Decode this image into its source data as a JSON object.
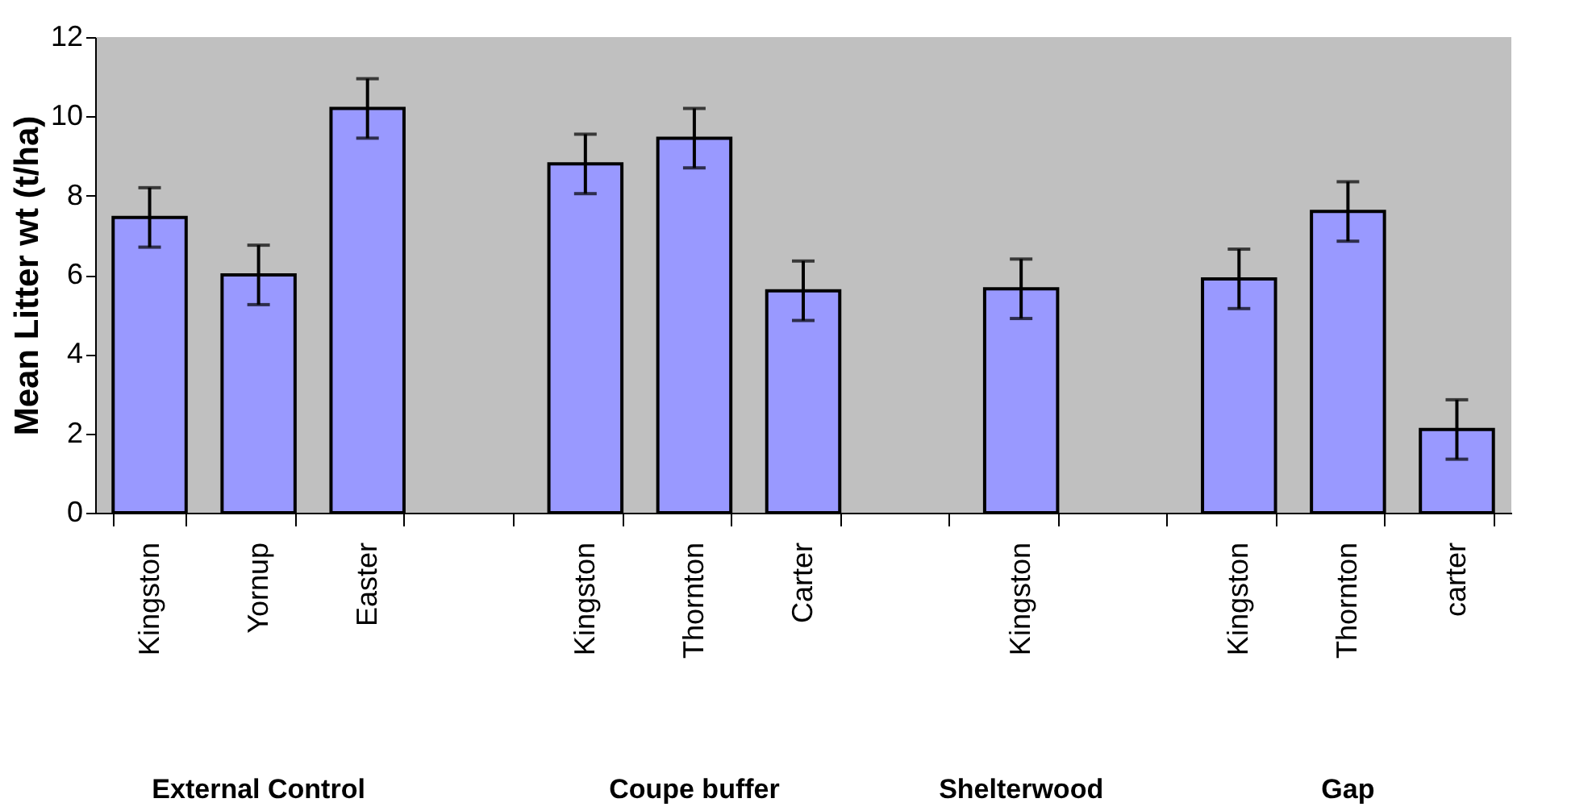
{
  "chart_data": {
    "type": "bar",
    "ylabel": "Mean Litter wt (t/ha)",
    "categories": [
      "Kingston",
      "Yornup",
      "Easter",
      null,
      "Kingston",
      "Thornton",
      "Carter",
      null,
      "Kingston",
      null,
      "Kingston",
      "Thornton",
      "carter"
    ],
    "values": [
      7.45,
      6.0,
      10.2,
      null,
      8.8,
      9.45,
      5.6,
      null,
      5.65,
      null,
      5.9,
      7.6,
      2.1
    ],
    "errors": [
      0.75,
      0.75,
      0.75,
      null,
      0.75,
      0.75,
      0.75,
      null,
      0.75,
      null,
      0.75,
      0.75,
      0.75
    ],
    "color": "#9999ff",
    "ylim": [
      0,
      12
    ],
    "yticks": [
      0,
      2,
      4,
      6,
      8,
      10,
      12
    ],
    "grid": false,
    "annotations": [
      "External Control",
      "Coupe buffer",
      "Shelterwood",
      "Gap"
    ]
  }
}
